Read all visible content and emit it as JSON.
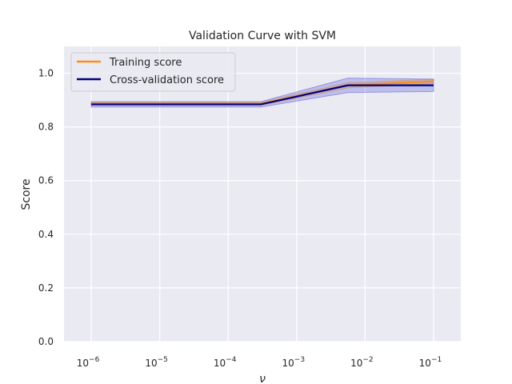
{
  "chart_data": {
    "type": "line",
    "title": "Validation Curve with SVM",
    "xlabel": "ν",
    "ylabel": "Score",
    "xscale": "log",
    "xlim": [
      4e-07,
      0.25
    ],
    "ylim": [
      0.0,
      1.1
    ],
    "grid": true,
    "legend_position": "top-left",
    "x": [
      1e-06,
      0.0003,
      0.0056,
      0.1
    ],
    "x_tick_exponents": [
      "-6",
      "-5",
      "-4",
      "-3",
      "-2",
      "-1"
    ],
    "x_tick_values": [
      1e-06,
      1e-05,
      0.0001,
      0.001,
      0.01,
      0.1
    ],
    "x_tick_base": "10",
    "y_ticks": [
      "0.0",
      "0.2",
      "0.4",
      "0.6",
      "0.8",
      "1.0"
    ],
    "y_tick_values": [
      0.0,
      0.2,
      0.4,
      0.6,
      0.8,
      1.0
    ],
    "series": [
      {
        "name": "Training score",
        "color": "#ff8c1a",
        "band_color": "#f5a623",
        "values": [
          0.886,
          0.886,
          0.955,
          0.97
        ],
        "upper": [
          0.892,
          0.892,
          0.965,
          0.978
        ],
        "lower": [
          0.88,
          0.88,
          0.945,
          0.962
        ]
      },
      {
        "name": "Cross-validation score",
        "color": "#000080",
        "band_color": "#3a3ad6",
        "values": [
          0.884,
          0.884,
          0.955,
          0.955
        ],
        "upper": [
          0.894,
          0.894,
          0.982,
          0.978
        ],
        "lower": [
          0.874,
          0.874,
          0.928,
          0.932
        ]
      }
    ]
  }
}
